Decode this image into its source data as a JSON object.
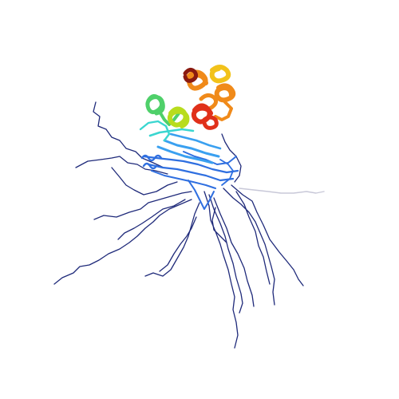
{
  "image": {
    "kind": "protein-structure-rendering",
    "style": "ribbon cartoon with rainbow coloring, disordered termini as thin traces",
    "background": "#ffffff",
    "colors": {
      "n_terminus": "#1f2a7a",
      "blue": "#2f6fe0",
      "light_blue": "#3aa0f0",
      "cyan": "#3ad6d0",
      "green": "#4fd06a",
      "yellow_green": "#b8dc1e",
      "yellow": "#f2c21a",
      "orange": "#f08a1a",
      "red": "#e0301a",
      "dark_red": "#8a1a10",
      "faded_tail": "#c8c8d8"
    }
  }
}
